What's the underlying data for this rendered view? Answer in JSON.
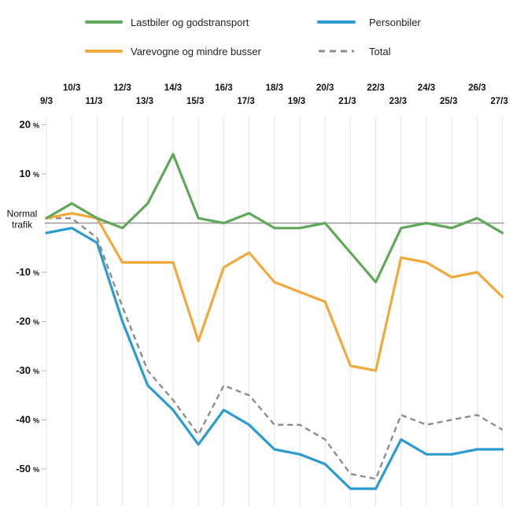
{
  "chart_data": {
    "type": "line",
    "categories": [
      "9/3",
      "10/3",
      "11/3",
      "12/3",
      "13/3",
      "14/3",
      "15/3",
      "16/3",
      "17/3",
      "18/3",
      "19/3",
      "20/3",
      "21/3",
      "22/3",
      "23/3",
      "24/3",
      "25/3",
      "26/3",
      "27/3"
    ],
    "y_ticks": [
      {
        "value": 20,
        "num": "20",
        "unit": "%"
      },
      {
        "value": 10,
        "num": "10",
        "unit": "%"
      },
      {
        "value": 0,
        "label_lines": [
          "Normal",
          "trafik"
        ]
      },
      {
        "value": -10,
        "num": "-10",
        "unit": "%"
      },
      {
        "value": -20,
        "num": "-20",
        "unit": "%"
      },
      {
        "value": -30,
        "num": "-30",
        "unit": "%"
      },
      {
        "value": -40,
        "num": "-40",
        "unit": "%"
      },
      {
        "value": -50,
        "num": "-50",
        "unit": "%"
      }
    ],
    "ylim": [
      -56,
      24
    ],
    "series": [
      {
        "name": "Lastbiler og godstransport",
        "color": "#5fa85a",
        "dashed": false,
        "values": [
          1,
          4,
          1,
          -1,
          4,
          14,
          1,
          0,
          2,
          -1,
          -1,
          0,
          -6,
          -12,
          -1,
          0,
          -1,
          1,
          -2
        ]
      },
      {
        "name": "Varevogne og mindre busser",
        "color": "#f3a83b",
        "dashed": false,
        "values": [
          1,
          2,
          1,
          -8,
          -8,
          -8,
          -24,
          -9,
          -6,
          -12,
          -14,
          -16,
          -29,
          -30,
          -7,
          -8,
          -11,
          -10,
          -15
        ]
      },
      {
        "name": "Personbiler",
        "color": "#2b9bd1",
        "dashed": false,
        "values": [
          -2,
          -1,
          -4,
          -20,
          -33,
          -38,
          -45,
          -38,
          -41,
          -46,
          -47,
          -49,
          -54,
          -54,
          -44,
          -47,
          -47,
          -46,
          -46
        ]
      },
      {
        "name": "Total",
        "color": "#8c8c8c",
        "dashed": true,
        "values": [
          1,
          1,
          -3,
          -17,
          -30,
          -36,
          -43,
          -33,
          -35,
          -41,
          -41,
          -44,
          -51,
          -52,
          -39,
          -41,
          -40,
          -39,
          -42
        ]
      }
    ],
    "legend": {
      "placement": "top",
      "items": [
        {
          "label": "Lastbiler og godstransport",
          "color": "#5fa85a",
          "dashed": false
        },
        {
          "label": "Personbiler",
          "color": "#2b9bd1",
          "dashed": false
        },
        {
          "label": "Varevogne og mindre busser",
          "color": "#f3a83b",
          "dashed": false
        },
        {
          "label": "Total",
          "color": "#8c8c8c",
          "dashed": true
        }
      ]
    },
    "grid": true,
    "title": "",
    "xlabel": "",
    "ylabel": ""
  }
}
